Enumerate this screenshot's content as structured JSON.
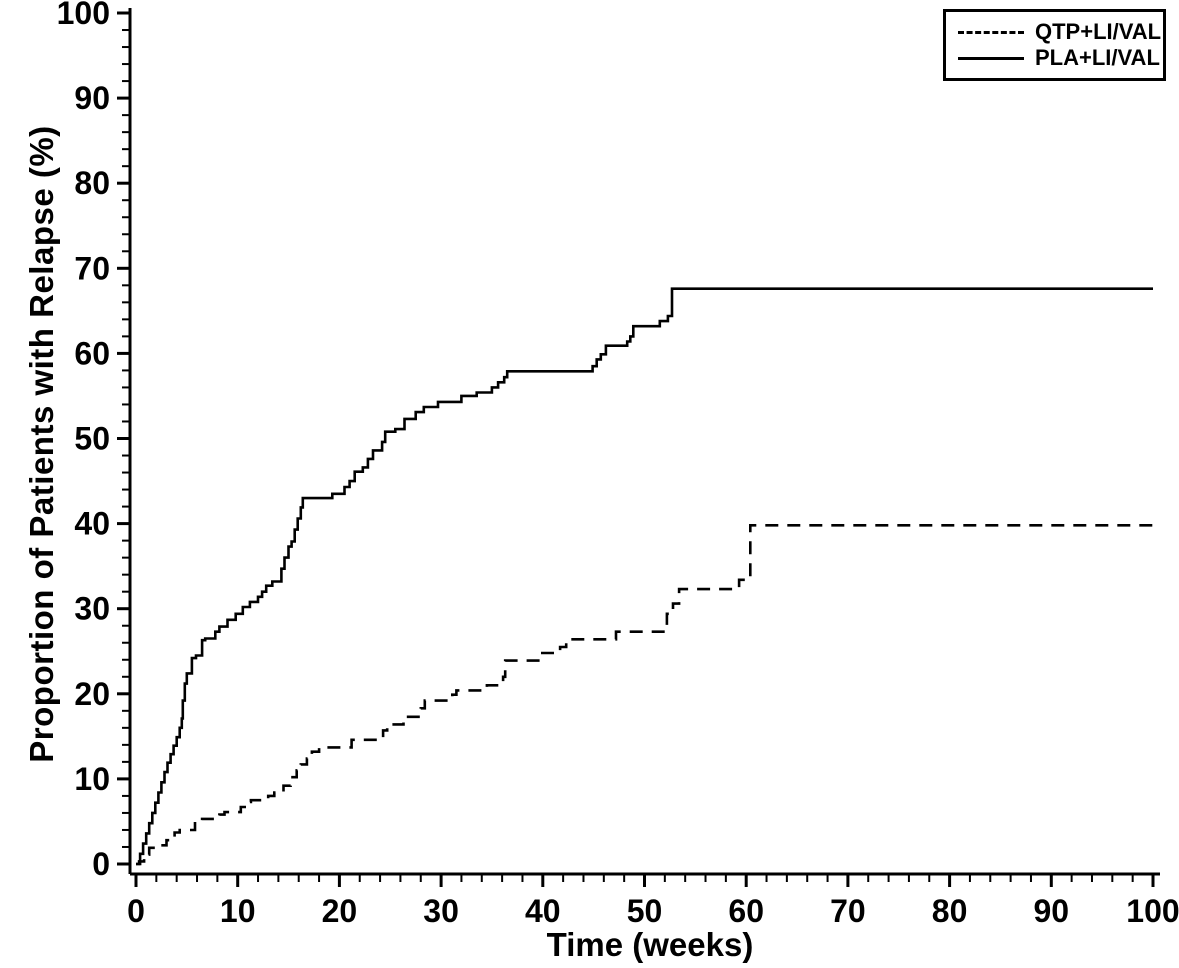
{
  "chart_data": {
    "type": "line",
    "subtype": "kaplan-meier-step",
    "title": "",
    "xlabel": "Time (weeks)",
    "ylabel": "Proportion of Patients with Relapse (%)",
    "xlim": [
      0,
      100
    ],
    "ylim": [
      0,
      100
    ],
    "x_ticks": [
      0,
      10,
      20,
      30,
      40,
      50,
      60,
      70,
      80,
      90,
      100
    ],
    "y_ticks": [
      0,
      10,
      20,
      30,
      40,
      50,
      60,
      70,
      80,
      90,
      100
    ],
    "x_minor_step": 2,
    "y_minor_step": 2,
    "grid": "off",
    "legend_position": "top-right",
    "line_color": "#000000",
    "background_color": "#ffffff",
    "series": [
      {
        "name": "QTP+LI/VAL",
        "style": "dashed",
        "points": [
          [
            0,
            0
          ],
          [
            0.3,
            0.3
          ],
          [
            0.8,
            1.1
          ],
          [
            1.3,
            1.9
          ],
          [
            2.2,
            2.2
          ],
          [
            3,
            2.8
          ],
          [
            3.8,
            3.7
          ],
          [
            4.3,
            4
          ],
          [
            5.8,
            5
          ],
          [
            6.5,
            5.3
          ],
          [
            8.2,
            5.8
          ],
          [
            8.7,
            6.1
          ],
          [
            10.3,
            6.7
          ],
          [
            10.9,
            7.3
          ],
          [
            11.3,
            7.5
          ],
          [
            13,
            8
          ],
          [
            13.6,
            8.4
          ],
          [
            14.5,
            9.2
          ],
          [
            15.2,
            10.2
          ],
          [
            15.8,
            11
          ],
          [
            16.2,
            11.7
          ],
          [
            16.8,
            12.4
          ],
          [
            17.3,
            13.2
          ],
          [
            18,
            13.7
          ],
          [
            21.2,
            14.6
          ],
          [
            24.3,
            15.7
          ],
          [
            24.7,
            16.4
          ],
          [
            26.3,
            17.3
          ],
          [
            28,
            18.3
          ],
          [
            28.4,
            19.2
          ],
          [
            31.1,
            19.9
          ],
          [
            31.5,
            20.4
          ],
          [
            34.5,
            21
          ],
          [
            36.1,
            22
          ],
          [
            36.3,
            23.9
          ],
          [
            39.7,
            24.8
          ],
          [
            41.7,
            25.5
          ],
          [
            42.3,
            26.4
          ],
          [
            47.2,
            27.3
          ],
          [
            52.2,
            29.4
          ],
          [
            52.8,
            30.6
          ],
          [
            53.4,
            32.3
          ],
          [
            59.3,
            33.4
          ],
          [
            60.4,
            39.8
          ],
          [
            100,
            39.8
          ]
        ]
      },
      {
        "name": "PLA+LI/VAL",
        "style": "solid",
        "points": [
          [
            0,
            0
          ],
          [
            0.4,
            1.2
          ],
          [
            0.7,
            2.4
          ],
          [
            1,
            3.6
          ],
          [
            1.3,
            4.8
          ],
          [
            1.6,
            6
          ],
          [
            1.9,
            7.2
          ],
          [
            2.2,
            8.4
          ],
          [
            2.5,
            9.6
          ],
          [
            2.8,
            10.8
          ],
          [
            3.1,
            11.9
          ],
          [
            3.4,
            12.9
          ],
          [
            3.7,
            13.9
          ],
          [
            4,
            14.9
          ],
          [
            4.3,
            16
          ],
          [
            4.5,
            17.1
          ],
          [
            4.6,
            19.2
          ],
          [
            4.8,
            21.2
          ],
          [
            5,
            22.4
          ],
          [
            5.5,
            24.2
          ],
          [
            5.9,
            24.5
          ],
          [
            6.5,
            26.3
          ],
          [
            6.8,
            26.5
          ],
          [
            7.8,
            27.3
          ],
          [
            8.2,
            27.9
          ],
          [
            9,
            28.7
          ],
          [
            9.8,
            29.4
          ],
          [
            10.5,
            30.2
          ],
          [
            11.2,
            30.8
          ],
          [
            12,
            31.4
          ],
          [
            12.4,
            32
          ],
          [
            12.8,
            32.7
          ],
          [
            13.4,
            33.2
          ],
          [
            14.3,
            34.7
          ],
          [
            14.6,
            36
          ],
          [
            15,
            37.3
          ],
          [
            15.3,
            37.9
          ],
          [
            15.6,
            39.3
          ],
          [
            15.9,
            40.6
          ],
          [
            16.2,
            41.9
          ],
          [
            16.4,
            43
          ],
          [
            19.3,
            43.5
          ],
          [
            20.5,
            44.3
          ],
          [
            21,
            45
          ],
          [
            21.5,
            46.1
          ],
          [
            22.3,
            46.6
          ],
          [
            22.8,
            47.6
          ],
          [
            23.3,
            48.6
          ],
          [
            24.2,
            49.6
          ],
          [
            24.5,
            50.8
          ],
          [
            25.5,
            51.1
          ],
          [
            26.4,
            52.3
          ],
          [
            27.5,
            53.1
          ],
          [
            28.3,
            53.7
          ],
          [
            29.7,
            54.3
          ],
          [
            32,
            55
          ],
          [
            33.5,
            55.4
          ],
          [
            35,
            56
          ],
          [
            35.6,
            56.6
          ],
          [
            36.2,
            57.2
          ],
          [
            36.5,
            57.9
          ],
          [
            44.9,
            58.5
          ],
          [
            45.3,
            59.3
          ],
          [
            45.7,
            59.9
          ],
          [
            46.2,
            60.9
          ],
          [
            48.3,
            61.4
          ],
          [
            48.6,
            62
          ],
          [
            48.9,
            63.2
          ],
          [
            51.5,
            63.8
          ],
          [
            52.3,
            64.4
          ],
          [
            52.7,
            67.6
          ],
          [
            100,
            67.6
          ]
        ]
      }
    ]
  },
  "legend": {
    "entries": [
      {
        "label": "QTP+LI/VAL",
        "line": "dashed"
      },
      {
        "label": "PLA+LI/VAL",
        "line": "solid"
      }
    ]
  }
}
